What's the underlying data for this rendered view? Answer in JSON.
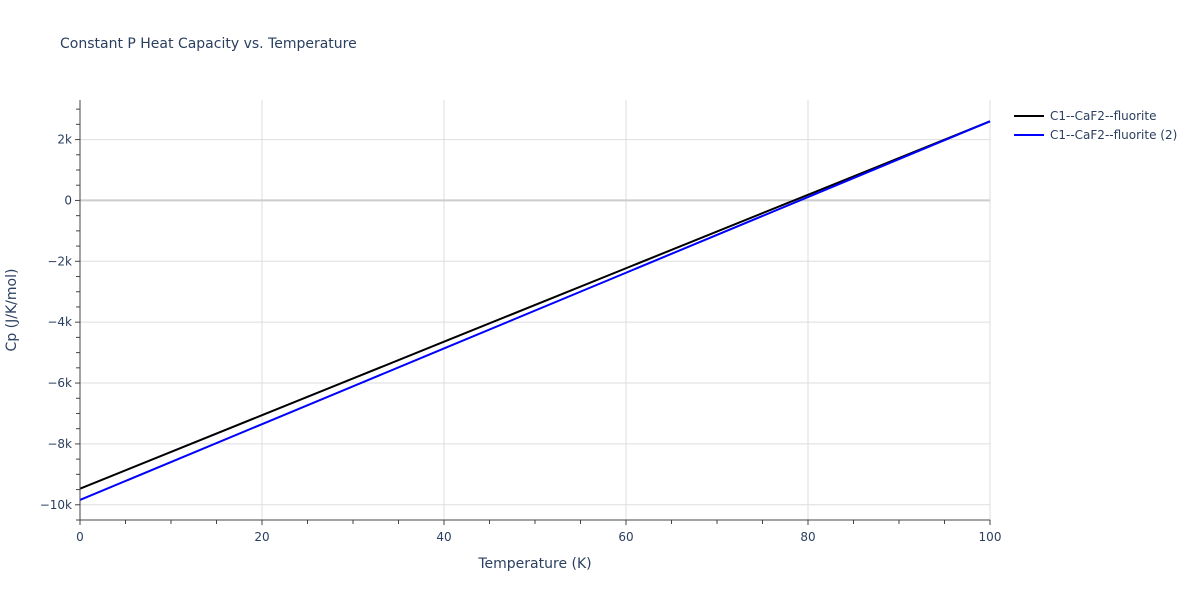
{
  "title": "Constant P Heat Capacity vs. Temperature",
  "colors": {
    "grid": "#dddddd",
    "axis_text": "#2a3f5f",
    "series1": "#000000",
    "series2": "#0000ff"
  },
  "legend": {
    "items": [
      {
        "label": "C1--CaF2--fluorite",
        "color": "#000000"
      },
      {
        "label": "C1--CaF2--fluorite (2)",
        "color": "#0000ff"
      }
    ]
  },
  "axes": {
    "x": {
      "title": "Temperature (K)",
      "ticks": [
        "0",
        "20",
        "40",
        "60",
        "80",
        "100"
      ]
    },
    "y": {
      "title": "Cp (J/K/mol)",
      "ticks": [
        "2k",
        "0",
        "−2k",
        "−4k",
        "−6k",
        "−8k",
        "−10k"
      ]
    }
  },
  "chart_data": {
    "type": "line",
    "title": "Constant P Heat Capacity vs. Temperature",
    "xlabel": "Temperature (K)",
    "ylabel": "Cp (J/K/mol)",
    "xlim": [
      0,
      100
    ],
    "ylim": [
      -10500,
      3300
    ],
    "x_ticks": [
      0,
      20,
      40,
      60,
      80,
      100
    ],
    "y_ticks": [
      -10000,
      -8000,
      -6000,
      -4000,
      -2000,
      0,
      2000
    ],
    "grid": true,
    "legend_position": "right-top",
    "series": [
      {
        "name": "C1--CaF2--fluorite",
        "color": "#000000",
        "x": [
          0,
          20,
          40,
          60,
          80,
          100
        ],
        "y": [
          -9470,
          -7056,
          -4642,
          -2228,
          186,
          2600
        ]
      },
      {
        "name": "C1--CaF2--fluorite (2)",
        "color": "#0000ff",
        "x": [
          0,
          20,
          40,
          60,
          80,
          100
        ],
        "y": [
          -9840,
          -7352,
          -4864,
          -2376,
          112,
          2600
        ]
      }
    ]
  }
}
